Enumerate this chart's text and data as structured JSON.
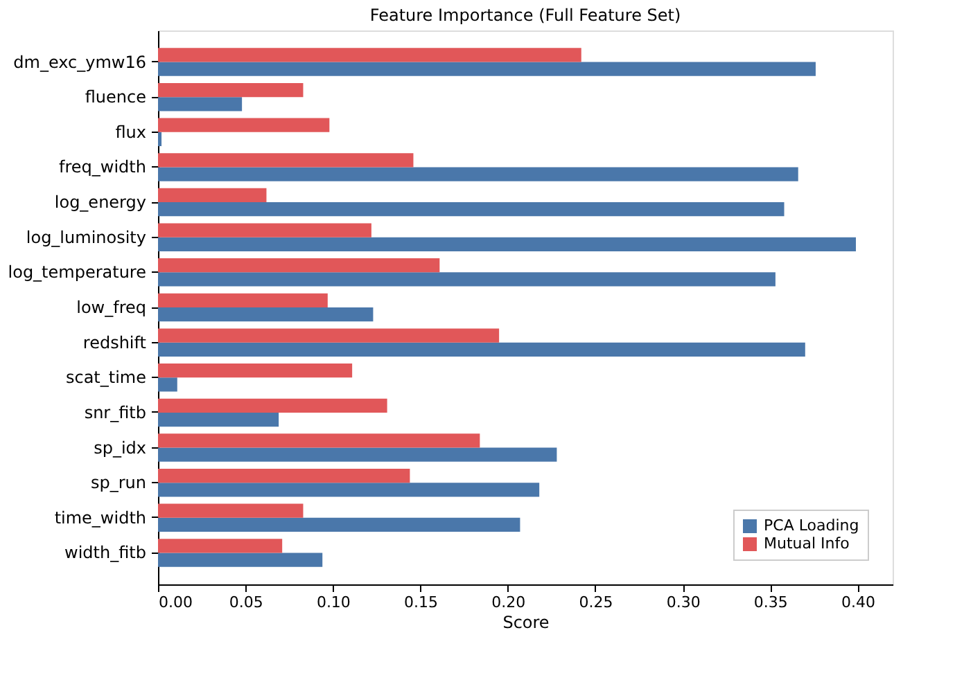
{
  "chart_data": {
    "type": "bar",
    "orientation": "horizontal",
    "title": "Feature Importance (Full Feature Set)",
    "xlabel": "Score",
    "categories": [
      "dm_exc_ymw16",
      "fluence",
      "flux",
      "freq_width",
      "log_energy",
      "log_luminosity",
      "log_temperature",
      "low_freq",
      "redshift",
      "scat_time",
      "snr_fitb",
      "sp_idx",
      "sp_run",
      "time_width",
      "width_fitb"
    ],
    "series": [
      {
        "name": "PCA Loading",
        "color": "#4a77aa",
        "values": [
          0.376,
          0.048,
          0.002,
          0.366,
          0.358,
          0.399,
          0.353,
          0.123,
          0.37,
          0.011,
          0.069,
          0.228,
          0.218,
          0.207,
          0.094
        ]
      },
      {
        "name": "Mutual Info",
        "color": "#e15759",
        "values": [
          0.242,
          0.083,
          0.098,
          0.146,
          0.062,
          0.122,
          0.161,
          0.097,
          0.195,
          0.111,
          0.131,
          0.184,
          0.144,
          0.083,
          0.071
        ]
      }
    ],
    "xlim": [
      0,
      0.42
    ],
    "xticks": [
      {
        "value": 0,
        "label": "0.00"
      },
      0.05,
      {
        "value": 0.1,
        "label": "0.10"
      },
      0.15,
      {
        "value": 0.2,
        "label": "0.20"
      },
      0.25,
      {
        "value": 0.3,
        "label": "0.30"
      },
      0.35,
      {
        "value": 0.4,
        "label": "0.40"
      }
    ],
    "grid": false,
    "legend": "bottom right"
  }
}
